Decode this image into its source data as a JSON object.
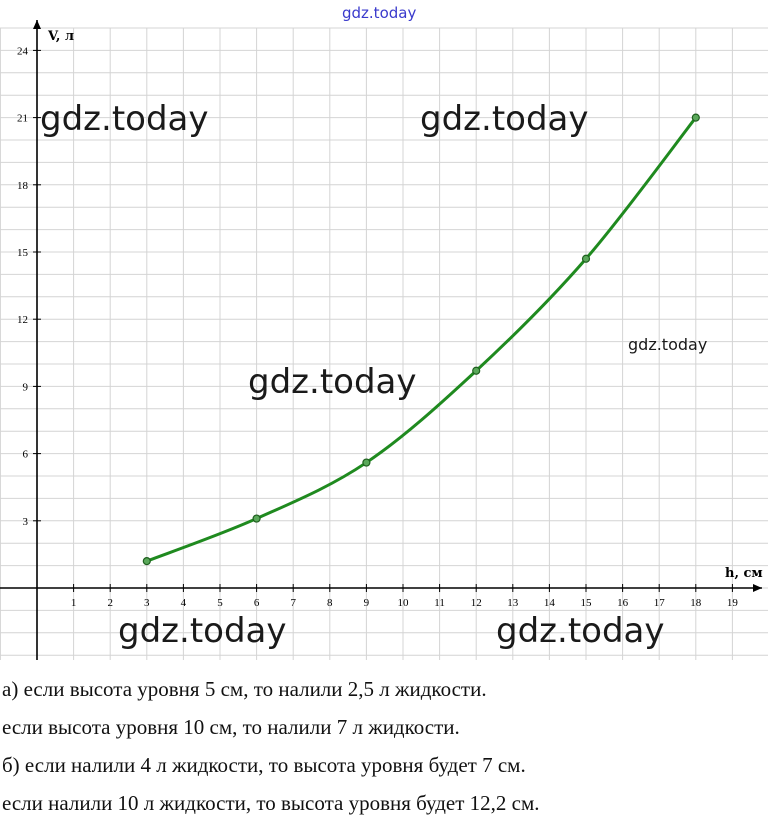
{
  "watermarks": [
    "gdz.today",
    "gdz.today",
    "gdz.today",
    "gdz.today",
    "gdz.today",
    "gdz.today",
    "gdz.today"
  ],
  "answers": [
    "а) если высота уровня 5 см, то налили 2,5 л жидкости.",
    "если высота уровня 10 см, то налили 7 л жидкости.",
    "б) если налили 4 л жидкости, то высота уровня будет 7 см.",
    "если налили 10 л жидкости, то высота уровня будет 12,2 см."
  ],
  "chart_data": {
    "type": "line",
    "xlabel": "h, см",
    "ylabel": "V, л",
    "xlim": [
      -1,
      20
    ],
    "ylim": [
      -3,
      24
    ],
    "xticks": [
      1,
      2,
      3,
      4,
      5,
      6,
      7,
      8,
      9,
      10,
      11,
      12,
      13,
      14,
      15,
      16,
      17,
      18,
      19
    ],
    "yticks": [
      3,
      6,
      9,
      12,
      15,
      18,
      21,
      24
    ],
    "grid": true,
    "series": [
      {
        "color": "#1f8a1f",
        "x": [
          3,
          6,
          9,
          12,
          15,
          18
        ],
        "y": [
          1.2,
          3.1,
          5.6,
          9.7,
          14.7,
          21
        ]
      }
    ]
  }
}
